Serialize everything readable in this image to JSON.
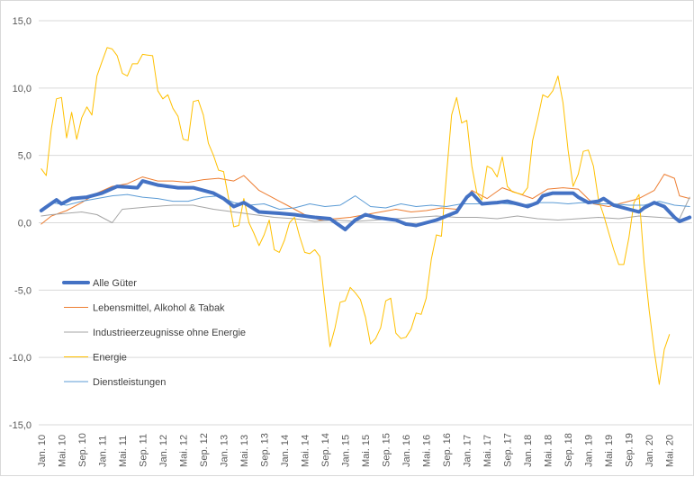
{
  "chart_data": {
    "type": "line",
    "title": "",
    "xlabel": "",
    "ylabel": "",
    "ylim": [
      -15,
      15
    ],
    "yticks": [
      "15,0",
      "10,0",
      "5,0",
      "0,0",
      "-5,0",
      "-10,0",
      "-15,0"
    ],
    "ytick_values": [
      15,
      10,
      5,
      0,
      -5,
      -10,
      -15
    ],
    "grid": "horizontal",
    "legend_position": "lower-left",
    "x_tick_labels": [
      "Jan. 10",
      "Mai. 10",
      "Sep. 10",
      "Jan. 11",
      "Mai. 11",
      "Sep. 11",
      "Jan. 12",
      "Mai. 12",
      "Sep. 12",
      "Jan. 13",
      "Mai. 13",
      "Sep. 13",
      "Jan. 14",
      "Mai. 14",
      "Sep. 14",
      "Jan. 15",
      "Mai. 15",
      "Sep. 15",
      "Jan. 16",
      "Mai. 16",
      "Sep. 16",
      "Jan. 17",
      "Mai. 17",
      "Sep. 17",
      "Jan. 18",
      "Mai. 18",
      "Sep. 18",
      "Jan. 19",
      "Mai. 19",
      "Sep. 19",
      "Jan. 20",
      "Mai. 20"
    ],
    "months_count": 129,
    "series": [
      {
        "name": "Alle Güter",
        "color": "#4472c4",
        "width": 4,
        "knots": [
          [
            0,
            0.9
          ],
          [
            3,
            1.7
          ],
          [
            4,
            1.4
          ],
          [
            6,
            1.8
          ],
          [
            9,
            1.9
          ],
          [
            12,
            2.2
          ],
          [
            15,
            2.7
          ],
          [
            19,
            2.6
          ],
          [
            20,
            3.1
          ],
          [
            23,
            2.8
          ],
          [
            27,
            2.6
          ],
          [
            30,
            2.6
          ],
          [
            34,
            2.2
          ],
          [
            36,
            1.8
          ],
          [
            38,
            1.2
          ],
          [
            40,
            1.5
          ],
          [
            43,
            0.8
          ],
          [
            47,
            0.7
          ],
          [
            50,
            0.6
          ],
          [
            54,
            0.4
          ],
          [
            57,
            0.3
          ],
          [
            60,
            -0.5
          ],
          [
            62,
            0.2
          ],
          [
            64,
            0.6
          ],
          [
            66,
            0.4
          ],
          [
            68,
            0.3
          ],
          [
            70,
            0.2
          ],
          [
            72,
            -0.1
          ],
          [
            74,
            -0.2
          ],
          [
            76,
            0
          ],
          [
            78,
            0.2
          ],
          [
            80,
            0.5
          ],
          [
            82,
            0.8
          ],
          [
            84,
            1.9
          ],
          [
            85,
            2.2
          ],
          [
            87,
            1.4
          ],
          [
            90,
            1.5
          ],
          [
            92,
            1.6
          ],
          [
            96,
            1.2
          ],
          [
            98,
            1.5
          ],
          [
            99,
            2.0
          ],
          [
            101,
            2.2
          ],
          [
            103,
            2.2
          ],
          [
            105,
            2.2
          ],
          [
            106,
            1.9
          ],
          [
            108,
            1.5
          ],
          [
            110,
            1.6
          ],
          [
            111,
            1.8
          ],
          [
            113,
            1.3
          ],
          [
            116,
            1.0
          ],
          [
            118,
            0.8
          ],
          [
            119,
            1.1
          ],
          [
            121,
            1.5
          ],
          [
            123,
            1.2
          ],
          [
            125,
            0.4
          ],
          [
            126,
            0.1
          ],
          [
            128,
            0.4
          ]
        ]
      },
      {
        "name": "Lebensmittel, Alkohol & Tabak",
        "color": "#ed7d31",
        "width": 1,
        "knots": [
          [
            0,
            -0.1
          ],
          [
            2,
            0.5
          ],
          [
            5,
            0.9
          ],
          [
            8,
            1.5
          ],
          [
            11,
            2.2
          ],
          [
            14,
            2.7
          ],
          [
            17,
            2.9
          ],
          [
            20,
            3.4
          ],
          [
            23,
            3.1
          ],
          [
            26,
            3.1
          ],
          [
            29,
            3.0
          ],
          [
            32,
            3.2
          ],
          [
            35,
            3.3
          ],
          [
            38,
            3.1
          ],
          [
            40,
            3.5
          ],
          [
            43,
            2.4
          ],
          [
            46,
            1.8
          ],
          [
            49,
            1.2
          ],
          [
            52,
            0.6
          ],
          [
            55,
            0.2
          ],
          [
            58,
            0.3
          ],
          [
            61,
            0.4
          ],
          [
            64,
            0.6
          ],
          [
            67,
            0.8
          ],
          [
            70,
            1.0
          ],
          [
            73,
            0.8
          ],
          [
            76,
            0.9
          ],
          [
            79,
            1.1
          ],
          [
            82,
            1.0
          ],
          [
            85,
            2.4
          ],
          [
            88,
            1.8
          ],
          [
            91,
            2.6
          ],
          [
            94,
            2.2
          ],
          [
            97,
            1.8
          ],
          [
            100,
            2.5
          ],
          [
            103,
            2.6
          ],
          [
            106,
            2.5
          ],
          [
            109,
            1.4
          ],
          [
            112,
            1.2
          ],
          [
            115,
            1.5
          ],
          [
            118,
            1.8
          ],
          [
            121,
            2.4
          ],
          [
            123,
            3.6
          ],
          [
            125,
            3.3
          ],
          [
            126,
            2.0
          ],
          [
            128,
            1.8
          ]
        ]
      },
      {
        "name": "Industrieerzeugnisse ohne Energie",
        "color": "#a5a5a5",
        "width": 1,
        "knots": [
          [
            0,
            0.5
          ],
          [
            2,
            0.6
          ],
          [
            5,
            0.7
          ],
          [
            8,
            0.8
          ],
          [
            11,
            0.6
          ],
          [
            14,
            0.0
          ],
          [
            16,
            1.0
          ],
          [
            19,
            1.1
          ],
          [
            22,
            1.2
          ],
          [
            26,
            1.3
          ],
          [
            30,
            1.3
          ],
          [
            34,
            1.0
          ],
          [
            38,
            0.8
          ],
          [
            42,
            0.6
          ],
          [
            46,
            0.4
          ],
          [
            50,
            0.3
          ],
          [
            54,
            0.1
          ],
          [
            58,
            0.2
          ],
          [
            62,
            0.1
          ],
          [
            66,
            0.2
          ],
          [
            70,
            0.3
          ],
          [
            74,
            0.4
          ],
          [
            78,
            0.5
          ],
          [
            82,
            0.4
          ],
          [
            86,
            0.4
          ],
          [
            90,
            0.3
          ],
          [
            94,
            0.5
          ],
          [
            98,
            0.3
          ],
          [
            102,
            0.2
          ],
          [
            106,
            0.3
          ],
          [
            110,
            0.4
          ],
          [
            114,
            0.3
          ],
          [
            118,
            0.5
          ],
          [
            122,
            0.4
          ],
          [
            126,
            0.3
          ],
          [
            128,
            1.9
          ]
        ]
      },
      {
        "name": "Energie",
        "color": "#ffc000",
        "width": 1,
        "knots": [
          [
            0,
            4.0
          ],
          [
            1,
            3.5
          ],
          [
            2,
            7.0
          ],
          [
            3,
            9.2
          ],
          [
            4,
            9.3
          ],
          [
            5,
            6.3
          ],
          [
            6,
            8.2
          ],
          [
            7,
            6.2
          ],
          [
            8,
            7.8
          ],
          [
            9,
            8.6
          ],
          [
            10,
            8.0
          ],
          [
            11,
            10.9
          ],
          [
            13,
            13.0
          ],
          [
            14,
            12.9
          ],
          [
            15,
            12.4
          ],
          [
            16,
            11.1
          ],
          [
            17,
            10.9
          ],
          [
            18,
            11.8
          ],
          [
            19,
            11.8
          ],
          [
            20,
            12.5
          ],
          [
            22,
            12.4
          ],
          [
            23,
            9.8
          ],
          [
            24,
            9.2
          ],
          [
            25,
            9.5
          ],
          [
            26,
            8.5
          ],
          [
            27,
            7.9
          ],
          [
            28,
            6.2
          ],
          [
            29,
            6.1
          ],
          [
            30,
            9.0
          ],
          [
            31,
            9.1
          ],
          [
            32,
            8.0
          ],
          [
            33,
            5.9
          ],
          [
            34,
            5.0
          ],
          [
            35,
            3.9
          ],
          [
            36,
            3.8
          ],
          [
            37,
            1.8
          ],
          [
            38,
            -0.3
          ],
          [
            39,
            -0.2
          ],
          [
            40,
            1.8
          ],
          [
            41,
            0.0
          ],
          [
            42,
            -0.8
          ],
          [
            43,
            -1.7
          ],
          [
            44,
            -0.9
          ],
          [
            45,
            0.2
          ],
          [
            46,
            -2.0
          ],
          [
            47,
            -2.2
          ],
          [
            48,
            -1.3
          ],
          [
            49,
            0.0
          ],
          [
            50,
            0.4
          ],
          [
            51,
            -1.0
          ],
          [
            52,
            -2.2
          ],
          [
            53,
            -2.3
          ],
          [
            54,
            -2.0
          ],
          [
            55,
            -2.5
          ],
          [
            56,
            -6.0
          ],
          [
            57,
            -9.2
          ],
          [
            58,
            -7.8
          ],
          [
            59,
            -5.9
          ],
          [
            60,
            -5.8
          ],
          [
            61,
            -4.8
          ],
          [
            62,
            -5.2
          ],
          [
            63,
            -5.7
          ],
          [
            64,
            -7.0
          ],
          [
            65,
            -9.0
          ],
          [
            66,
            -8.6
          ],
          [
            67,
            -7.8
          ],
          [
            68,
            -5.8
          ],
          [
            69,
            -5.6
          ],
          [
            70,
            -8.2
          ],
          [
            71,
            -8.6
          ],
          [
            72,
            -8.5
          ],
          [
            73,
            -7.9
          ],
          [
            74,
            -6.7
          ],
          [
            75,
            -6.8
          ],
          [
            76,
            -5.6
          ],
          [
            77,
            -2.7
          ],
          [
            78,
            -0.9
          ],
          [
            79,
            -1.0
          ],
          [
            80,
            3.5
          ],
          [
            81,
            8.0
          ],
          [
            82,
            9.3
          ],
          [
            83,
            7.4
          ],
          [
            84,
            7.6
          ],
          [
            85,
            4.2
          ],
          [
            86,
            2.2
          ],
          [
            87,
            1.7
          ],
          [
            88,
            4.2
          ],
          [
            89,
            4.0
          ],
          [
            90,
            3.4
          ],
          [
            91,
            4.9
          ],
          [
            92,
            2.7
          ],
          [
            93,
            2.3
          ],
          [
            94,
            2.2
          ],
          [
            95,
            2.1
          ],
          [
            96,
            2.6
          ],
          [
            97,
            6.1
          ],
          [
            98,
            7.7
          ],
          [
            99,
            9.5
          ],
          [
            100,
            9.3
          ],
          [
            101,
            9.8
          ],
          [
            102,
            10.9
          ],
          [
            103,
            8.9
          ],
          [
            104,
            5.4
          ],
          [
            105,
            2.7
          ],
          [
            106,
            3.6
          ],
          [
            107,
            5.3
          ],
          [
            108,
            5.4
          ],
          [
            109,
            4.2
          ],
          [
            110,
            1.7
          ],
          [
            111,
            0.6
          ],
          [
            112,
            -0.7
          ],
          [
            113,
            -2.0
          ],
          [
            114,
            -3.1
          ],
          [
            115,
            -3.1
          ],
          [
            116,
            -1.1
          ],
          [
            117,
            1.5
          ],
          [
            118,
            2.1
          ],
          [
            119,
            -2.9
          ],
          [
            120,
            -6.5
          ],
          [
            121,
            -9.5
          ],
          [
            122,
            -12.0
          ],
          [
            123,
            -9.4
          ],
          [
            124,
            -8.3
          ]
        ]
      },
      {
        "name": "Dienstleistungen",
        "color": "#5b9bd5",
        "width": 1,
        "knots": [
          [
            0,
            0.9
          ],
          [
            2,
            1.5
          ],
          [
            5,
            1.3
          ],
          [
            8,
            1.6
          ],
          [
            11,
            1.8
          ],
          [
            14,
            2.0
          ],
          [
            17,
            2.1
          ],
          [
            20,
            1.9
          ],
          [
            23,
            1.8
          ],
          [
            26,
            1.6
          ],
          [
            29,
            1.6
          ],
          [
            32,
            1.9
          ],
          [
            35,
            2.0
          ],
          [
            38,
            1.5
          ],
          [
            41,
            1.3
          ],
          [
            44,
            1.4
          ],
          [
            47,
            1.0
          ],
          [
            50,
            1.1
          ],
          [
            53,
            1.4
          ],
          [
            56,
            1.2
          ],
          [
            59,
            1.3
          ],
          [
            62,
            2.0
          ],
          [
            65,
            1.2
          ],
          [
            68,
            1.1
          ],
          [
            71,
            1.4
          ],
          [
            74,
            1.2
          ],
          [
            77,
            1.3
          ],
          [
            80,
            1.2
          ],
          [
            83,
            1.4
          ],
          [
            86,
            1.4
          ],
          [
            89,
            1.5
          ],
          [
            92,
            1.4
          ],
          [
            95,
            1.3
          ],
          [
            98,
            1.5
          ],
          [
            101,
            1.5
          ],
          [
            104,
            1.4
          ],
          [
            107,
            1.5
          ],
          [
            110,
            1.4
          ],
          [
            113,
            1.4
          ],
          [
            116,
            1.3
          ],
          [
            119,
            1.3
          ],
          [
            122,
            1.6
          ],
          [
            125,
            1.3
          ],
          [
            128,
            1.2
          ]
        ]
      }
    ]
  }
}
